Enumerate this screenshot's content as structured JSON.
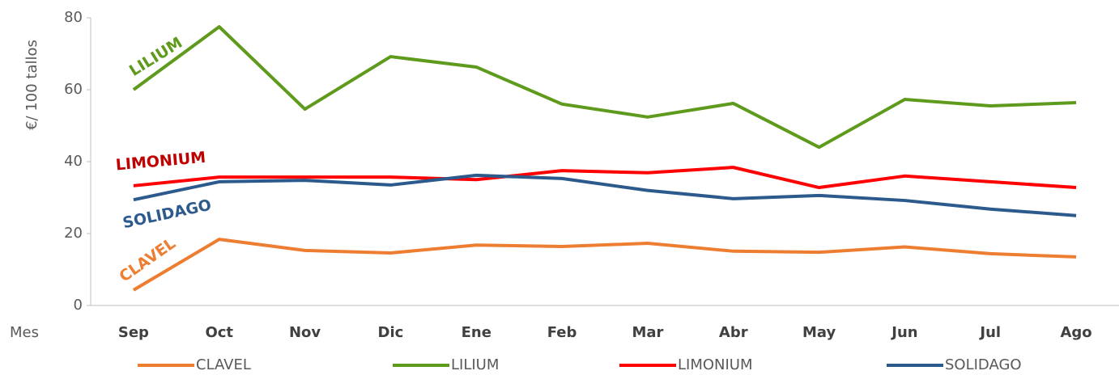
{
  "chart_data": {
    "type": "line",
    "y_label": "€/ 100 tallos",
    "x_label": "Mes",
    "categories": [
      "Sep",
      "Oct",
      "Nov",
      "Dic",
      "Ene",
      "Feb",
      "Mar",
      "Abr",
      "May",
      "Jun",
      "Jul",
      "Ago"
    ],
    "series": [
      {
        "name": "CLAVEL",
        "color": "#ed7d31",
        "values": [
          4.3,
          18.4,
          15.3,
          14.6,
          16.8,
          16.4,
          17.3,
          15.1,
          14.8,
          16.3,
          14.4,
          13.5
        ]
      },
      {
        "name": "LILIUM",
        "color": "#5e9a1c",
        "values": [
          60,
          77.5,
          54.6,
          69.2,
          66.3,
          56,
          52.4,
          56.2,
          44,
          57.3,
          55.5,
          56.4
        ]
      },
      {
        "name": "LIMONIUM",
        "color": "#ff0000",
        "values": [
          33.3,
          35.7,
          35.7,
          35.7,
          35,
          37.5,
          36.9,
          38.4,
          32.8,
          36,
          34.4,
          32.8
        ]
      },
      {
        "name": "SOLIDAGO",
        "color": "#2c5a8c",
        "values": [
          29.4,
          34.4,
          34.8,
          33.5,
          36.2,
          35.3,
          32,
          29.7,
          30.6,
          29.2,
          26.8,
          25
        ]
      }
    ],
    "annotations": [
      {
        "text": "CLAVEL",
        "color": "#ed7d31"
      },
      {
        "text": "LILIUM",
        "color": "#5e9a1c"
      },
      {
        "text": "LIMONIUM",
        "color": "#c00000"
      },
      {
        "text": "SOLIDAGO",
        "color": "#2c5a8c"
      }
    ],
    "ylim": [
      0,
      80
    ],
    "yticks": [
      0,
      20,
      40,
      60,
      80
    ],
    "grid": false,
    "legend": "bottom"
  }
}
